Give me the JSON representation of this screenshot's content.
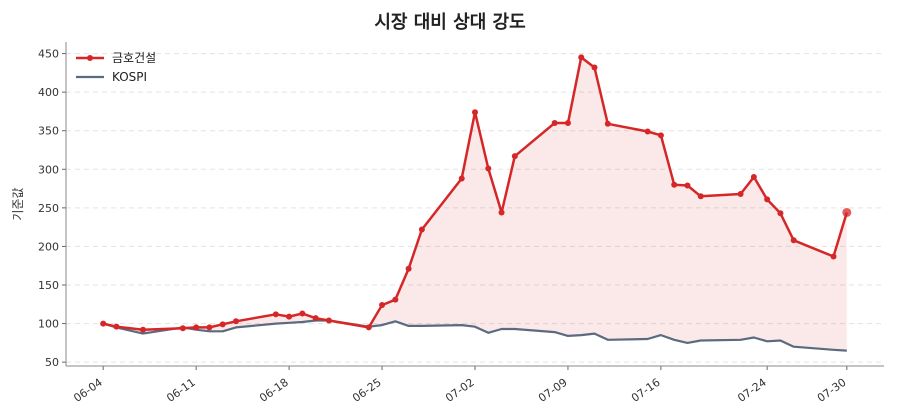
{
  "chart_data": {
    "type": "line",
    "title": "시장 대비 상대 강도",
    "ylabel": "기준값",
    "xlabel": "",
    "ylim": [
      45,
      465
    ],
    "yticks": [
      50,
      100,
      150,
      200,
      250,
      300,
      350,
      400,
      450
    ],
    "x_tick_labels": [
      "06-04",
      "06-11",
      "06-18",
      "06-25",
      "07-02",
      "07-09",
      "07-16",
      "07-24",
      "07-30"
    ],
    "x_tick_dates": [
      "2024-06-04",
      "2024-06-11",
      "2024-06-18",
      "2024-06-25",
      "2024-07-02",
      "2024-07-09",
      "2024-07-16",
      "2024-07-24",
      "2024-07-30"
    ],
    "x": [
      "2024-06-04",
      "2024-06-05",
      "2024-06-07",
      "2024-06-10",
      "2024-06-11",
      "2024-06-12",
      "2024-06-13",
      "2024-06-14",
      "2024-06-17",
      "2024-06-18",
      "2024-06-19",
      "2024-06-20",
      "2024-06-21",
      "2024-06-24",
      "2024-06-25",
      "2024-06-26",
      "2024-06-27",
      "2024-06-28",
      "2024-07-01",
      "2024-07-02",
      "2024-07-03",
      "2024-07-04",
      "2024-07-05",
      "2024-07-08",
      "2024-07-09",
      "2024-07-10",
      "2024-07-11",
      "2024-07-12",
      "2024-07-15",
      "2024-07-16",
      "2024-07-17",
      "2024-07-18",
      "2024-07-19",
      "2024-07-22",
      "2024-07-23",
      "2024-07-24",
      "2024-07-25",
      "2024-07-26",
      "2024-07-29",
      "2024-07-30"
    ],
    "grid": true,
    "legend_position": "top-left",
    "series": [
      {
        "name": "금호건설",
        "color": "#d62728",
        "marker": "circle",
        "fill": true,
        "values": [
          100,
          96,
          92,
          94,
          95,
          95,
          99,
          103,
          112,
          109,
          113,
          107,
          104,
          95,
          124,
          131,
          171,
          222,
          288,
          374,
          301,
          244,
          317,
          360,
          360,
          445,
          432,
          359,
          349,
          344,
          280,
          279,
          265,
          268,
          290,
          261,
          243,
          208,
          187,
          244
        ]
      },
      {
        "name": "KOSPI",
        "color": "#5a6b80",
        "marker": "none",
        "fill": false,
        "values": [
          100,
          95,
          87,
          95,
          92,
          90,
          90,
          95,
          100,
          101,
          102,
          104,
          104,
          96,
          98,
          103,
          97,
          97,
          98,
          96,
          88,
          93,
          93,
          89,
          84,
          85,
          87,
          79,
          80,
          85,
          79,
          75,
          78,
          79,
          82,
          77,
          78,
          70,
          66,
          65
        ]
      }
    ]
  }
}
